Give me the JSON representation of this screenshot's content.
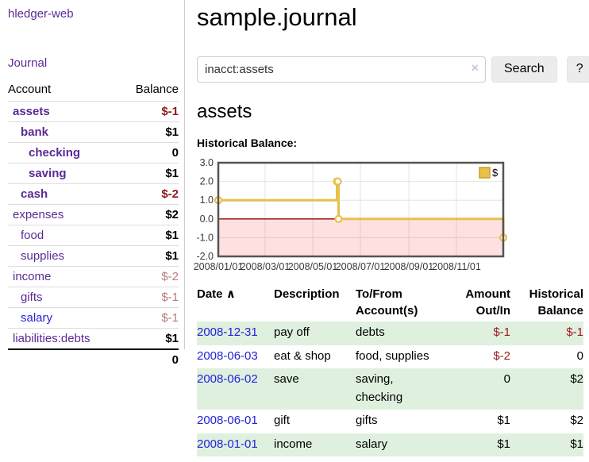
{
  "app": {
    "title": "hledger-web"
  },
  "sidebar": {
    "journal_link": "Journal",
    "table": {
      "headers": [
        "Account",
        "Balance"
      ],
      "accounts": [
        {
          "name": "assets",
          "depth": 1,
          "bold": true,
          "link": "purple",
          "balance": "$-1",
          "bal_class": "neg"
        },
        {
          "name": "bank",
          "depth": 2,
          "bold": true,
          "link": "purple",
          "balance": "$1",
          "bal_class": ""
        },
        {
          "name": "checking",
          "depth": 3,
          "bold": true,
          "link": "purple",
          "balance": "0",
          "bal_class": ""
        },
        {
          "name": "saving",
          "depth": 3,
          "bold": true,
          "link": "purple",
          "balance": "$1",
          "bal_class": ""
        },
        {
          "name": "cash",
          "depth": 2,
          "bold": true,
          "link": "purple",
          "balance": "$-2",
          "bal_class": "neg"
        },
        {
          "name": "expenses",
          "depth": 1,
          "bold": false,
          "link": "purple",
          "balance": "$2",
          "bal_class": ""
        },
        {
          "name": "food",
          "depth": 2,
          "bold": false,
          "link": "purple",
          "balance": "$1",
          "bal_class": ""
        },
        {
          "name": "supplies",
          "depth": 2,
          "bold": false,
          "link": "purple",
          "balance": "$1",
          "bal_class": ""
        },
        {
          "name": "income",
          "depth": 1,
          "bold": false,
          "link": "purple",
          "balance": "$-2",
          "bal_class": "negl"
        },
        {
          "name": "gifts",
          "depth": 2,
          "bold": false,
          "link": "purple",
          "balance": "$-1",
          "bal_class": "negl"
        },
        {
          "name": "salary",
          "depth": 2,
          "bold": false,
          "link": "blue",
          "balance": "$-1",
          "bal_class": "negl"
        },
        {
          "name": "liabilities:debts",
          "depth": 1,
          "bold": false,
          "link": "purple",
          "balance": "$1",
          "bal_class": ""
        }
      ],
      "total": "0"
    }
  },
  "main": {
    "title": "sample.journal",
    "search": {
      "value": "inacct:assets",
      "clear_icon": "×",
      "button_label": "Search",
      "help_label": "?"
    },
    "account_heading": "assets",
    "chart_label": "Historical Balance:"
  },
  "chart_data": {
    "type": "line",
    "step": true,
    "title": "Historical Balance",
    "xlim": [
      "2008-01-01",
      "2008-12-31"
    ],
    "ylim": [
      -2,
      3
    ],
    "yticks": [
      {
        "v": 3,
        "label": "3.0"
      },
      {
        "v": 2,
        "label": "2.0"
      },
      {
        "v": 1,
        "label": "1.0"
      },
      {
        "v": 0,
        "label": "0.0"
      },
      {
        "v": -1,
        "label": "-1.0"
      },
      {
        "v": -2,
        "label": "-2.0"
      }
    ],
    "xticks": [
      {
        "date": "2008-01-01",
        "label": "2008/01/01"
      },
      {
        "date": "2008-03-01",
        "label": "2008/03/01"
      },
      {
        "date": "2008-05-01",
        "label": "2008/05/01"
      },
      {
        "date": "2008-07-01",
        "label": "2008/07/01"
      },
      {
        "date": "2008-09-01",
        "label": "2008/09/01"
      },
      {
        "date": "2008-11-01",
        "label": "2008/11/01"
      }
    ],
    "series": [
      {
        "name": "$",
        "color": "#e8c04a",
        "points": [
          [
            "2008-01-01",
            1
          ],
          [
            "2008-06-01",
            2
          ],
          [
            "2008-06-02",
            2
          ],
          [
            "2008-06-03",
            0
          ],
          [
            "2008-12-31",
            -1
          ]
        ]
      }
    ],
    "legend": {
      "label": "$",
      "position": "top-right"
    },
    "colors": {
      "negative_region": "rgba(255,0,0,0.12)",
      "zero_line": "#8b0000",
      "grid": "#e4e4e4",
      "border": "#545454",
      "marker_fill": "#ffffff",
      "legend_swatch_border": "#c7a02f",
      "tick_text": "#3a3a3a"
    }
  },
  "register": {
    "headers": {
      "date": "Date",
      "sort_icon": "∧",
      "description": "Description",
      "accounts": "To/From Account(s)",
      "amount": "Amount Out/In",
      "balance": "Historical Balance"
    },
    "rows": [
      {
        "date": "2008-12-31",
        "description": "pay off",
        "accounts": "debts",
        "amount": "$-1",
        "amount_neg": true,
        "balance": "$-1",
        "balance_neg": true,
        "shaded": true
      },
      {
        "date": "2008-06-03",
        "description": "eat & shop",
        "accounts": "food, supplies",
        "amount": "$-2",
        "amount_neg": true,
        "balance": "0",
        "balance_neg": false,
        "shaded": false
      },
      {
        "date": "2008-06-02",
        "description": "save",
        "accounts": "saving, checking",
        "amount": "0",
        "amount_neg": false,
        "balance": "$2",
        "balance_neg": false,
        "shaded": true
      },
      {
        "date": "2008-06-01",
        "description": "gift",
        "accounts": "gifts",
        "amount": "$1",
        "amount_neg": false,
        "balance": "$2",
        "balance_neg": false,
        "shaded": false
      },
      {
        "date": "2008-01-01",
        "description": "income",
        "accounts": "salary",
        "amount": "$1",
        "amount_neg": false,
        "balance": "$1",
        "balance_neg": false,
        "shaded": true
      }
    ]
  },
  "colors": {
    "link_purple": "#5b2a94",
    "link_blue": "#2222dd",
    "negative_dark": "#8e1919",
    "negative_light": "#b97c7c",
    "table_negative": "#9d1a1a",
    "row_shade_green": "#dff0df",
    "chart_line_gold": "#e8c04a"
  }
}
